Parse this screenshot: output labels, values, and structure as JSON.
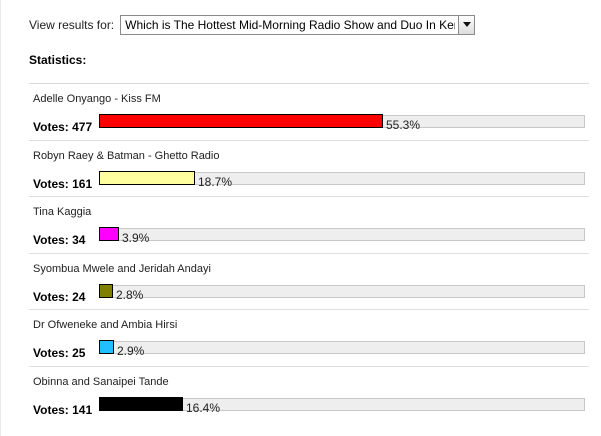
{
  "view_results": {
    "label": "View results for:",
    "selected_poll": "Which is The Hottest Mid-Morning Radio Show and Duo In Kenya?"
  },
  "statistics_heading": "Statistics:",
  "results": [
    {
      "name": "Adelle Onyango - Kiss FM",
      "votes_label": "Votes: 477",
      "percent_label": "55.3%",
      "percent": 55.3,
      "color": "#ff0000"
    },
    {
      "name": "Robyn Raey & Batman - Ghetto Radio",
      "votes_label": "Votes: 161",
      "percent_label": "18.7%",
      "percent": 18.7,
      "color": "#ffffa0"
    },
    {
      "name": "Tina Kaggia",
      "votes_label": "Votes: 34",
      "percent_label": "3.9%",
      "percent": 3.9,
      "color": "#ff00ff"
    },
    {
      "name": "Syombua Mwele and Jeridah Andayi",
      "votes_label": "Votes: 24",
      "percent_label": "2.8%",
      "percent": 2.8,
      "color": "#808000"
    },
    {
      "name": "Dr Ofweneke and Ambia Hirsi",
      "votes_label": "Votes: 25",
      "percent_label": "2.9%",
      "percent": 2.9,
      "color": "#22bfff"
    },
    {
      "name": "Obinna and Sanaipei Tande",
      "votes_label": "Votes: 141",
      "percent_label": "16.4%",
      "percent": 16.4,
      "color": "#000000"
    }
  ]
}
